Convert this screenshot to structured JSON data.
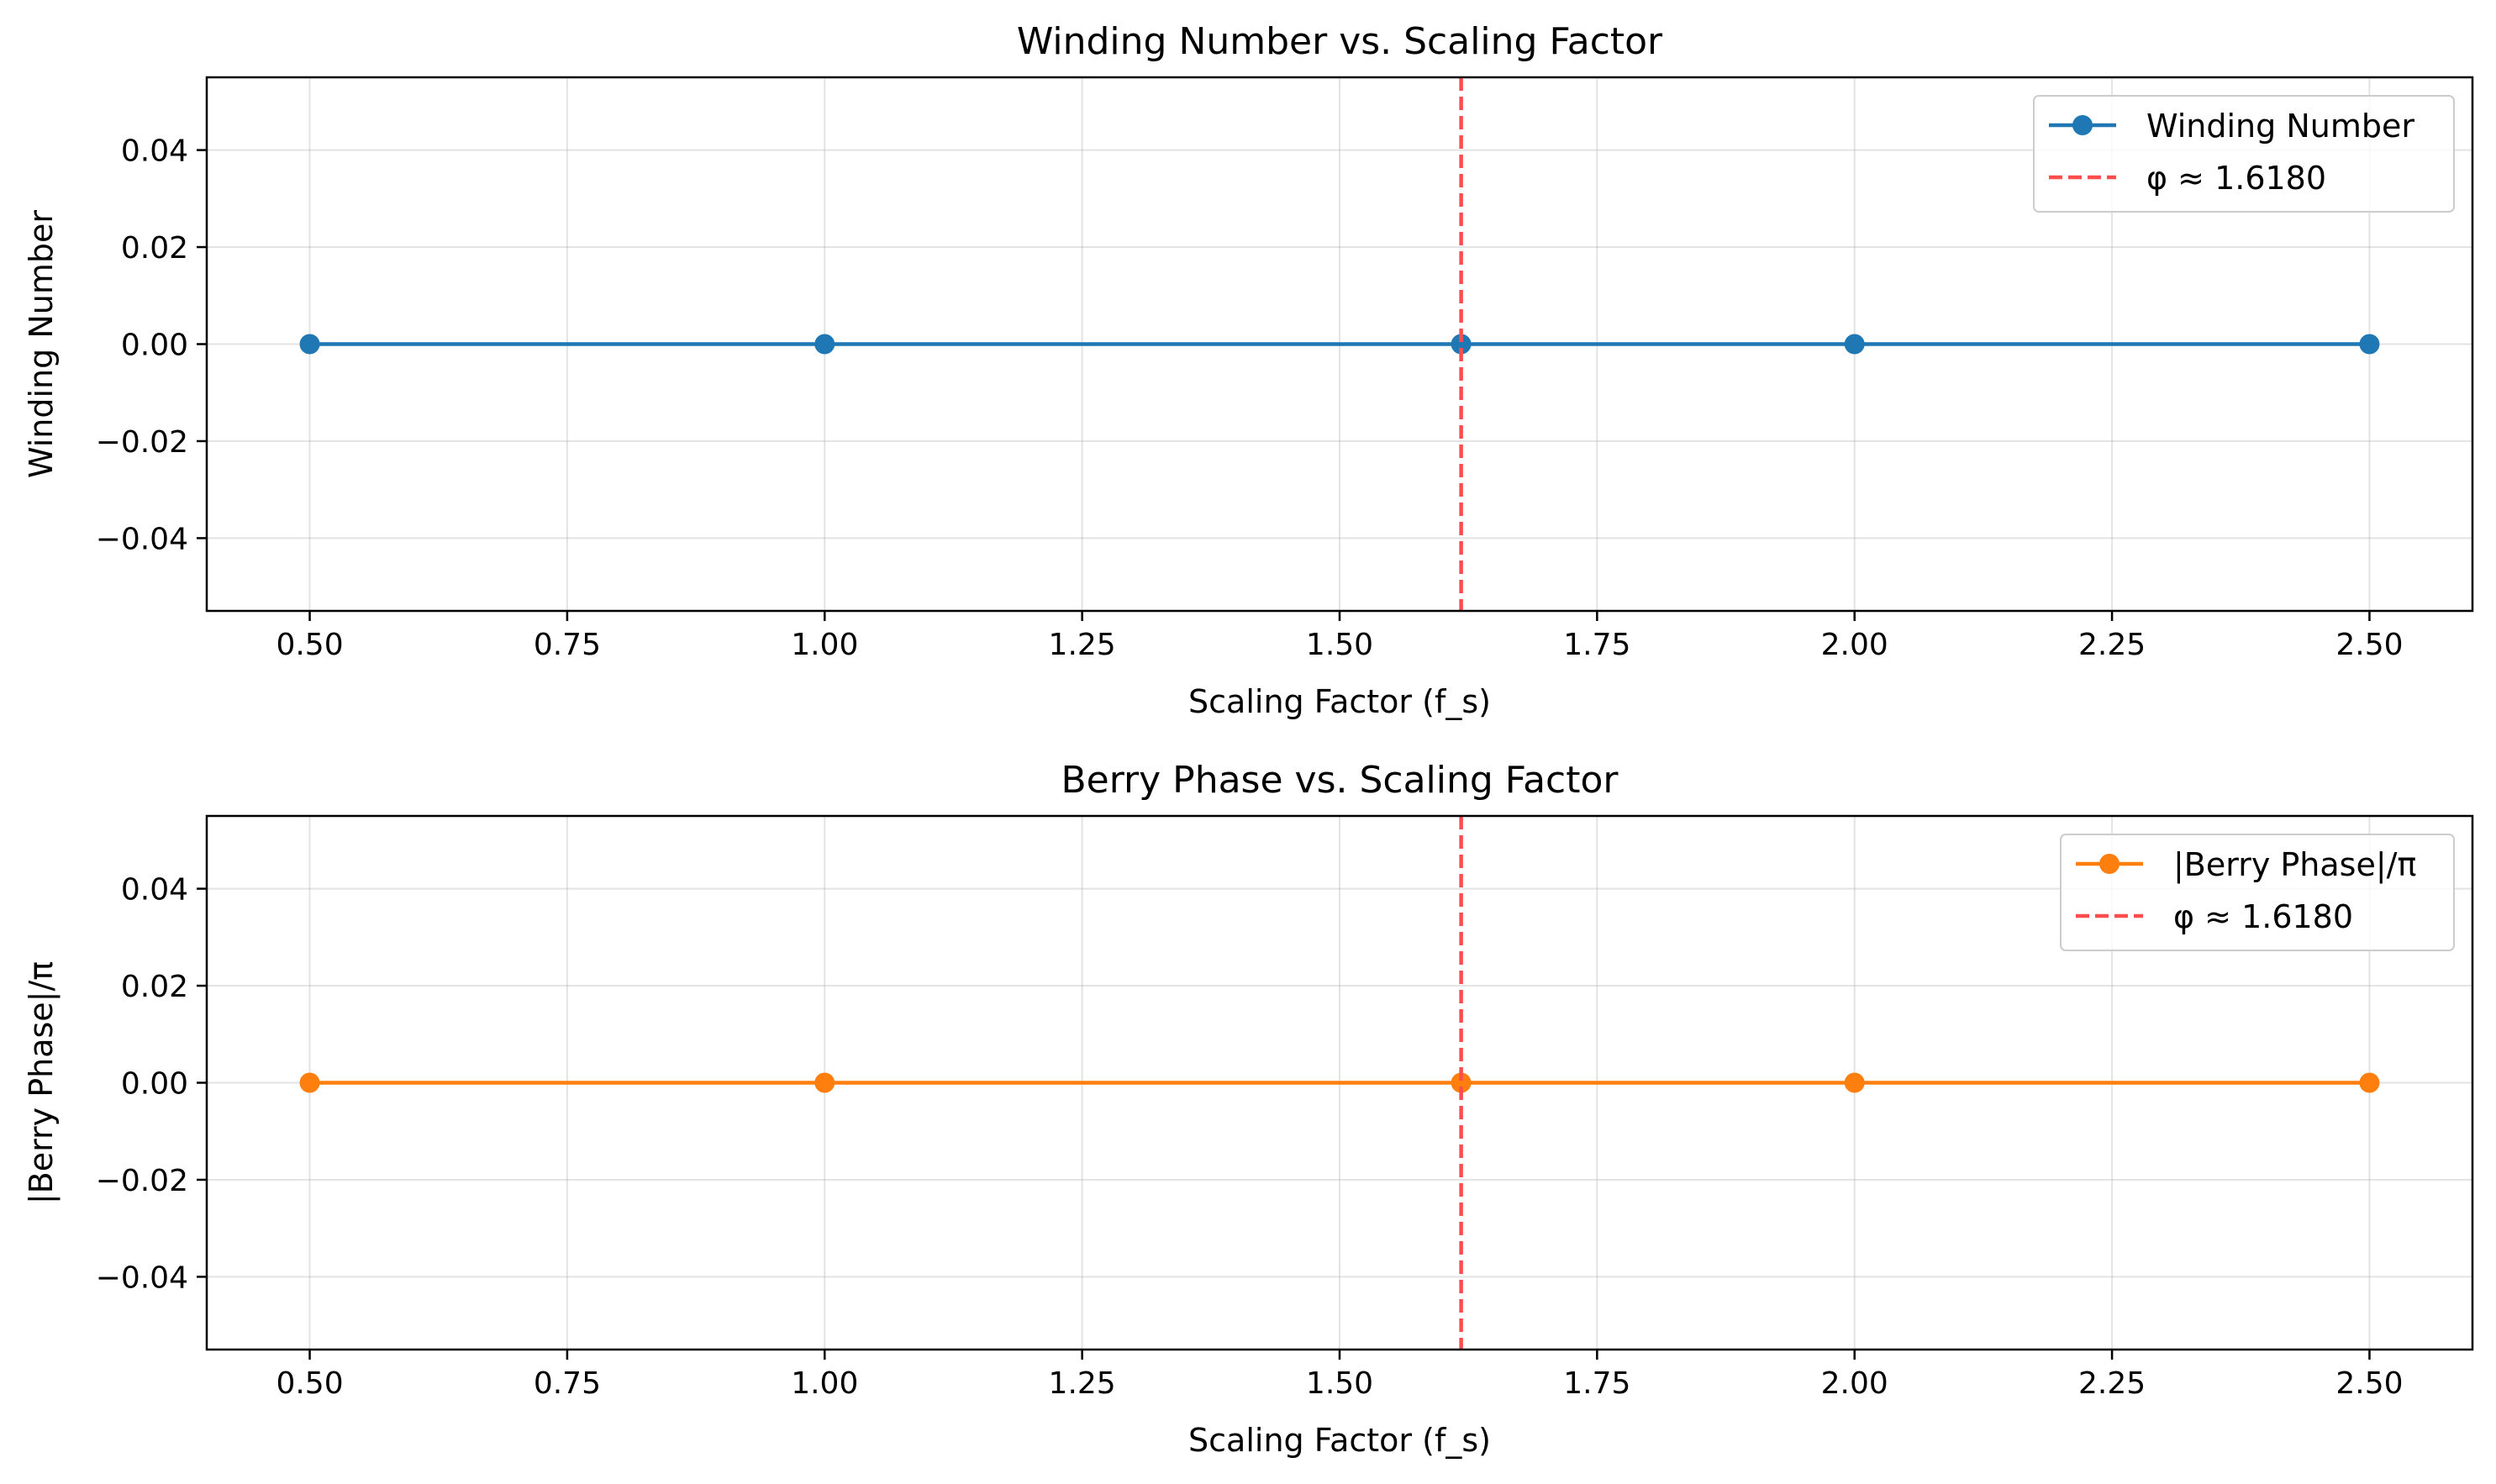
{
  "chart_data": [
    {
      "type": "line",
      "title": "Winding Number vs. Scaling Factor",
      "xlabel": "Scaling Factor (f_s)",
      "ylabel": "Winding Number",
      "xlim": [
        0.4,
        2.6
      ],
      "ylim": [
        -0.055,
        0.055
      ],
      "xticks": [
        0.5,
        0.75,
        1.0,
        1.25,
        1.5,
        1.75,
        2.0,
        2.25,
        2.5
      ],
      "xtick_labels": [
        "0.50",
        "0.75",
        "1.00",
        "1.25",
        "1.50",
        "1.75",
        "2.00",
        "2.25",
        "2.50"
      ],
      "yticks": [
        -0.04,
        -0.02,
        0.0,
        0.02,
        0.04
      ],
      "ytick_labels": [
        "−0.04",
        "−0.02",
        "0.00",
        "0.02",
        "0.04"
      ],
      "grid": true,
      "legend_position": "top-right",
      "x": [
        0.5,
        1.0,
        1.618,
        2.0,
        2.5
      ],
      "series": [
        {
          "name": "Winding Number",
          "values": [
            0,
            0,
            0,
            0,
            0
          ],
          "color": "#1f77b4"
        }
      ],
      "reference_line": {
        "name": "φ ≈ 1.6180",
        "x": 1.618,
        "color": "#ff4d4d",
        "style": "dashed"
      }
    },
    {
      "type": "line",
      "title": "Berry Phase vs. Scaling Factor",
      "xlabel": "Scaling Factor (f_s)",
      "ylabel": "|Berry Phase|/π",
      "xlim": [
        0.4,
        2.6
      ],
      "ylim": [
        -0.055,
        0.055
      ],
      "xticks": [
        0.5,
        0.75,
        1.0,
        1.25,
        1.5,
        1.75,
        2.0,
        2.25,
        2.5
      ],
      "xtick_labels": [
        "0.50",
        "0.75",
        "1.00",
        "1.25",
        "1.50",
        "1.75",
        "2.00",
        "2.25",
        "2.50"
      ],
      "yticks": [
        -0.04,
        -0.02,
        0.0,
        0.02,
        0.04
      ],
      "ytick_labels": [
        "−0.04",
        "−0.02",
        "0.00",
        "0.02",
        "0.04"
      ],
      "grid": true,
      "legend_position": "top-right",
      "x": [
        0.5,
        1.0,
        1.618,
        2.0,
        2.5
      ],
      "series": [
        {
          "name": "|Berry Phase|/π",
          "values": [
            0,
            0,
            0,
            0,
            0
          ],
          "color": "#ff7f0e"
        }
      ],
      "reference_line": {
        "name": "φ ≈ 1.6180",
        "x": 1.618,
        "color": "#ff4d4d",
        "style": "dashed"
      }
    }
  ]
}
